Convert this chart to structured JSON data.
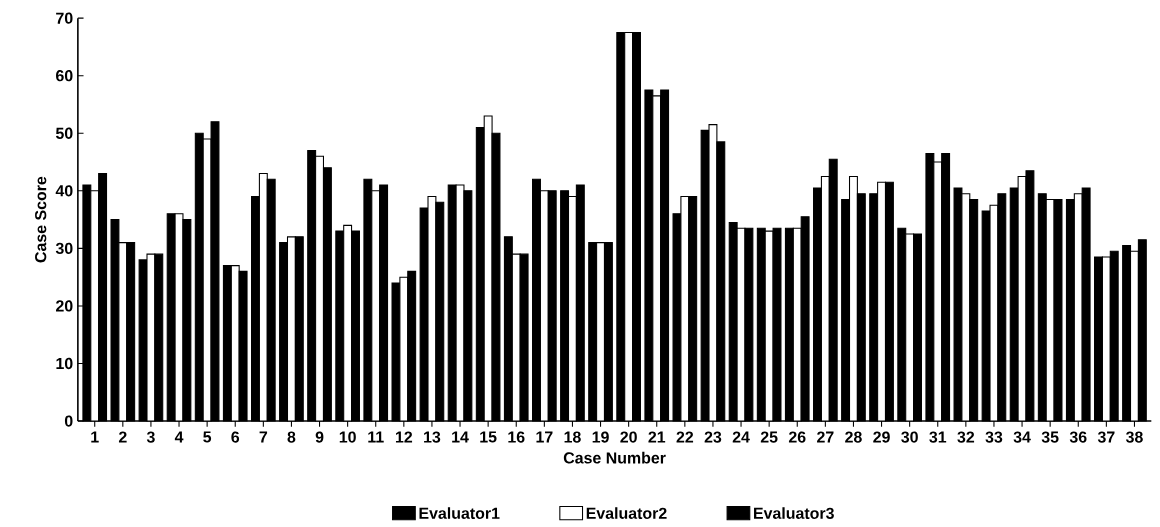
{
  "chart_data": {
    "type": "bar",
    "xlabel": "Case Number",
    "ylabel": "Case Score",
    "categories": [
      "1",
      "2",
      "3",
      "4",
      "5",
      "6",
      "7",
      "8",
      "9",
      "10",
      "11",
      "12",
      "13",
      "14",
      "15",
      "16",
      "17",
      "18",
      "19",
      "20",
      "21",
      "22",
      "23",
      "24",
      "25",
      "26",
      "27",
      "28",
      "29",
      "30",
      "31",
      "32",
      "33",
      "34",
      "35",
      "36",
      "37",
      "38"
    ],
    "series": [
      {
        "name": "Evaluator1",
        "color": "#000000",
        "values": [
          41,
          35,
          28,
          36,
          50,
          27,
          39,
          31,
          47,
          33,
          42,
          24,
          37,
          41,
          51,
          32,
          42,
          40,
          31,
          67.5,
          57.5,
          36,
          50.5,
          34.5,
          33.5,
          33.5,
          40.5,
          38.5,
          39.5,
          33.5,
          46.5,
          40.5,
          36.5,
          40.5,
          39.5,
          38.5,
          28.5,
          30.5
        ]
      },
      {
        "name": "Evaluator2",
        "color": "#ffffff",
        "values": [
          40,
          31,
          29,
          36,
          49,
          27,
          43,
          32,
          46,
          34,
          40,
          25,
          39,
          41,
          53,
          29,
          40,
          39,
          31,
          67.5,
          56.5,
          39,
          51.5,
          33.5,
          33,
          33.5,
          42.5,
          42.5,
          41.5,
          32.5,
          45,
          39.5,
          37.5,
          42.5,
          38.5,
          39.5,
          28.5,
          29.5
        ]
      },
      {
        "name": "Evaluator3",
        "color": "#000000",
        "values": [
          43,
          31,
          29,
          35,
          52,
          26,
          42,
          32,
          44,
          33,
          41,
          26,
          38,
          40,
          50,
          29,
          40,
          41,
          31,
          67.5,
          57.5,
          39,
          48.5,
          33.5,
          33.5,
          35.5,
          45.5,
          39.5,
          41.5,
          32.5,
          46.5,
          38.5,
          39.5,
          43.5,
          38.5,
          40.5,
          29.5,
          31.5
        ]
      }
    ],
    "ylim": [
      0,
      70
    ],
    "yticks": [
      0,
      10,
      20,
      30,
      40,
      50,
      60,
      70
    ],
    "legend": "bottom"
  }
}
